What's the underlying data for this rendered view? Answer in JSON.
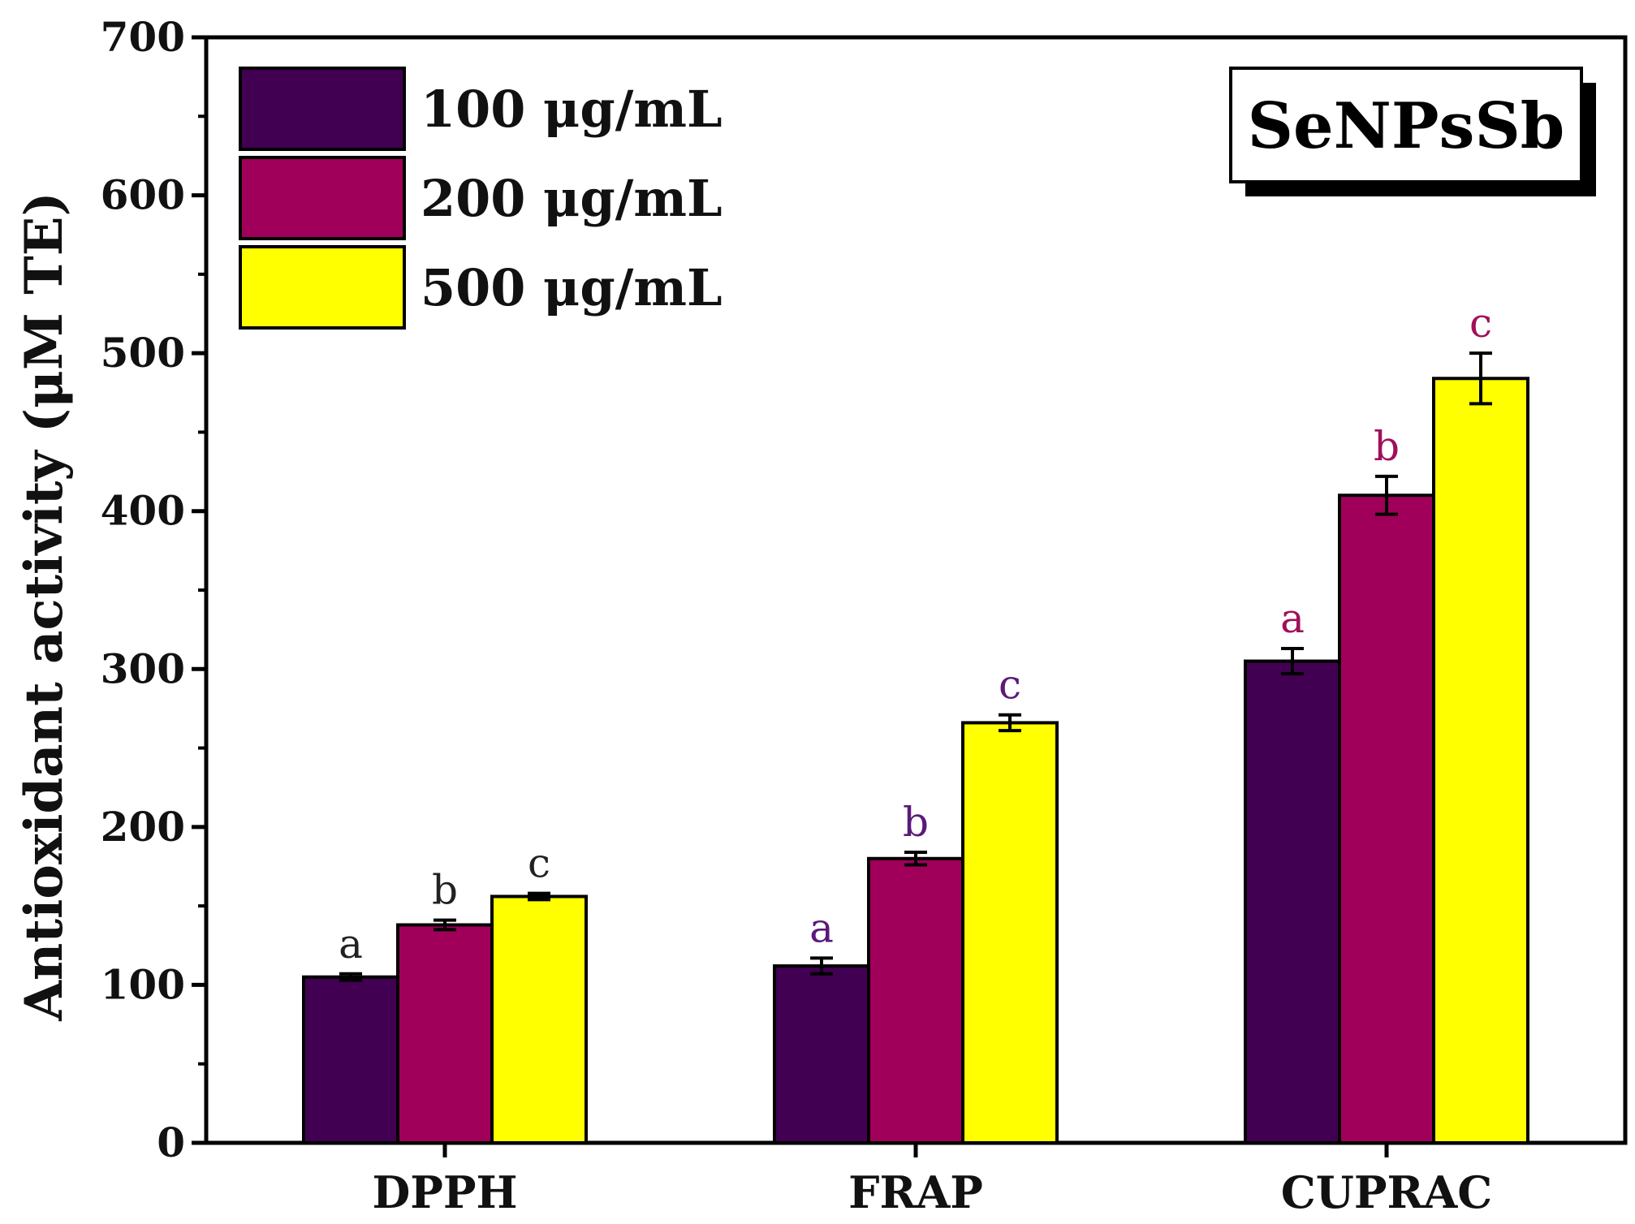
{
  "chart_data": {
    "type": "bar",
    "categories": [
      "DPPH",
      "FRAP",
      "CUPRAC"
    ],
    "ylabel": "Antioxidant activity (μM TE)",
    "xlabel": "",
    "ylim": [
      0,
      700
    ],
    "yticks": [
      0,
      100,
      200,
      300,
      400,
      500,
      600,
      700
    ],
    "legend_position": "top-left",
    "annotation": "SeNPsSb",
    "series": [
      {
        "name": "100 μg/mL",
        "color": "#420052",
        "values": [
          105,
          112,
          305
        ],
        "errors": [
          2,
          5,
          8
        ]
      },
      {
        "name": "200 μg/mL",
        "color": "#A0005A",
        "values": [
          138,
          180,
          410
        ],
        "errors": [
          3,
          4,
          12
        ]
      },
      {
        "name": "500 μg/mL",
        "color": "#FFFF00",
        "values": [
          156,
          266,
          484
        ],
        "errors": [
          2,
          5,
          16
        ]
      }
    ],
    "significance_letters": [
      [
        "a",
        "b",
        "c"
      ],
      [
        "a",
        "b",
        "c"
      ],
      [
        "a",
        "b",
        "c"
      ]
    ],
    "significance_colors": [
      "#222222",
      "#5A1A7A",
      "#A0105A"
    ]
  }
}
